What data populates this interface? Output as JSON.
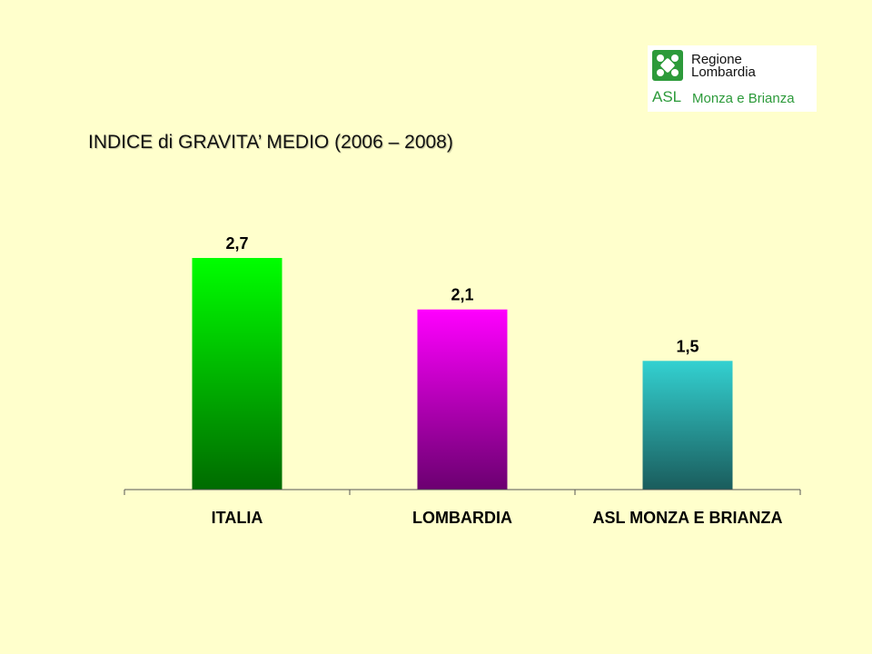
{
  "logo": {
    "line1": "Regione",
    "line2": "Lombardia",
    "asl": "ASL",
    "subtitle": "Monza e Brianza",
    "accent_color": "#2c9a3a",
    "icon": "regione-lombardia-rosa-camuna-icon"
  },
  "chart_data": {
    "type": "bar",
    "title": "INDICE di GRAVITA’ MEDIO (2006 – 2008)",
    "categories": [
      "ITALIA",
      "LOMBARDIA",
      "ASL MONZA E BRIANZA"
    ],
    "values": [
      2.7,
      2.1,
      1.5
    ],
    "value_labels": [
      "2,7",
      "2,1",
      "1,5"
    ],
    "colors": [
      {
        "top": "#00ff00",
        "bottom": "#006b00"
      },
      {
        "top": "#ff00ff",
        "bottom": "#6b0070"
      },
      {
        "top": "#33d1d1",
        "bottom": "#1a5c5c"
      }
    ],
    "xlabel": "",
    "ylabel": "",
    "ylim": [
      0,
      2.7
    ],
    "grid": false,
    "legend": "none"
  }
}
